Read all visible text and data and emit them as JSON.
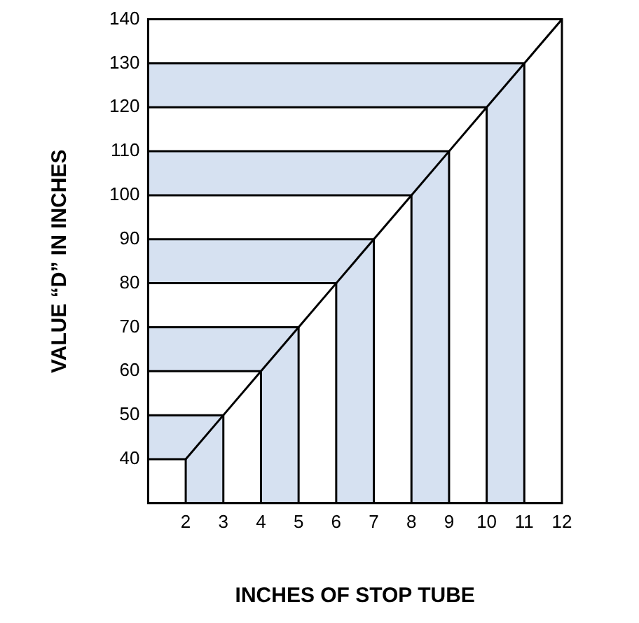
{
  "chart_data": {
    "type": "line",
    "xlabel": "INCHES OF STOP TUBE",
    "ylabel": "VALUE “D” IN INCHES",
    "x": [
      2,
      3,
      4,
      5,
      6,
      7,
      8,
      9,
      10,
      11,
      12
    ],
    "series": [
      {
        "color": "#000000",
        "values": [
          40,
          50,
          60,
          70,
          80,
          90,
          100,
          110,
          120,
          130,
          140
        ]
      },
      {
        "color": "#000000",
        "x": [
          1,
          2,
          2
        ],
        "values": [
          40,
          40,
          30
        ]
      },
      {
        "color": "#000000",
        "x": [
          1,
          3,
          3
        ],
        "values": [
          50,
          50,
          30
        ]
      },
      {
        "color": "#000000",
        "x": [
          1,
          4,
          4
        ],
        "values": [
          60,
          60,
          30
        ]
      },
      {
        "color": "#000000",
        "x": [
          1,
          5,
          5
        ],
        "values": [
          70,
          70,
          30
        ]
      },
      {
        "color": "#000000",
        "x": [
          1,
          6,
          6
        ],
        "values": [
          80,
          80,
          30
        ]
      },
      {
        "color": "#000000",
        "x": [
          1,
          7,
          7
        ],
        "values": [
          90,
          90,
          30
        ]
      },
      {
        "color": "#000000",
        "x": [
          1,
          8,
          8
        ],
        "values": [
          100,
          100,
          30
        ]
      },
      {
        "color": "#000000",
        "x": [
          1,
          9,
          9
        ],
        "values": [
          110,
          110,
          30
        ]
      },
      {
        "color": "#000000",
        "x": [
          1,
          10,
          10
        ],
        "values": [
          120,
          120,
          30
        ]
      },
      {
        "color": "#000000",
        "x": [
          1,
          11,
          11
        ],
        "values": [
          130,
          130,
          30
        ]
      }
    ],
    "xlim": [
      1,
      12
    ],
    "ylim": [
      30,
      140
    ],
    "xticks": [
      2,
      3,
      4,
      5,
      6,
      7,
      8,
      9,
      10,
      11,
      12
    ],
    "yticks": [
      40,
      50,
      60,
      70,
      80,
      90,
      100,
      110,
      120,
      130,
      140
    ],
    "grid": false,
    "legend": false,
    "marker": "none",
    "line_style": "solid"
  }
}
